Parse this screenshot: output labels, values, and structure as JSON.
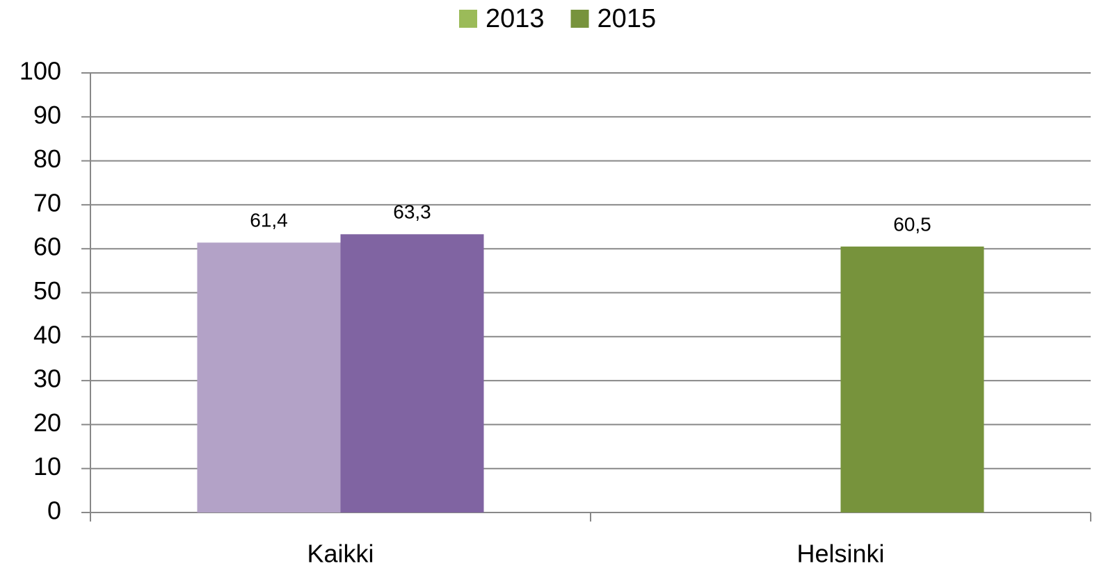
{
  "chart_data": {
    "type": "bar",
    "categories": [
      "Kaikki",
      "Helsinki"
    ],
    "series": [
      {
        "name": "2013",
        "color": "#9bbb59",
        "point_colors": [
          "#b3a2c7",
          "#9bbb59"
        ],
        "values": [
          61.4,
          null
        ],
        "value_labels": [
          "61,4",
          null
        ]
      },
      {
        "name": "2015",
        "color": "#77933c",
        "point_colors": [
          "#8064a2",
          "#77933c"
        ],
        "values": [
          63.3,
          60.5
        ],
        "value_labels": [
          "63,3",
          "60,5"
        ]
      }
    ],
    "ylim": [
      0,
      100
    ],
    "yticks": [
      0,
      10,
      20,
      30,
      40,
      50,
      60,
      70,
      80,
      90,
      100
    ],
    "grid": true,
    "legend": "top"
  }
}
